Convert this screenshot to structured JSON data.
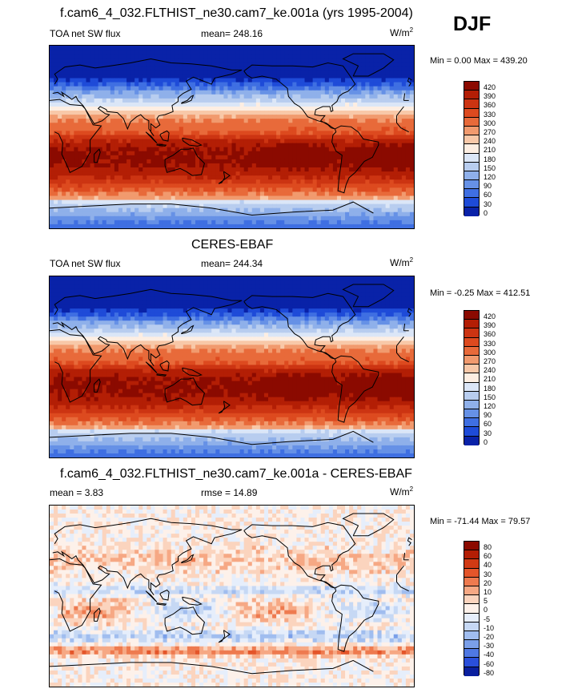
{
  "season": "DJF",
  "panels": [
    {
      "title": "f.cam6_4_032.FLTHIST_ne30.cam7_ke.001a (yrs 1995-2004)",
      "left_label": "TOA net SW flux",
      "mid_label": "mean= 248.16",
      "unit": "W/m",
      "unit_exp": "2",
      "minmax": "Min =   0.00 Max = 439.20"
    },
    {
      "title": "CERES-EBAF",
      "left_label": "TOA net SW flux",
      "mid_label": "mean= 244.34",
      "unit": "W/m",
      "unit_exp": "2",
      "minmax": "Min =  -0.25 Max = 412.51"
    },
    {
      "title": "f.cam6_4_032.FLTHIST_ne30.cam7_ke.001a - CERES-EBAF",
      "left_label": "mean =   3.83",
      "mid_label": "rmse =  14.89",
      "unit": "W/m",
      "unit_exp": "2",
      "minmax": "Min = -71.44 Max =  79.57"
    }
  ],
  "chart_data": [
    {
      "type": "heatmap",
      "title": "f.cam6_4_032.FLTHIST_ne30.cam7_ke.001a (yrs 1995-2004)",
      "variable": "TOA net SW flux",
      "units": "W/m2",
      "mean": 248.16,
      "min": 0.0,
      "max": 439.2,
      "colorbar_levels": [
        "420",
        "390",
        "360",
        "330",
        "300",
        "270",
        "240",
        "210",
        "180",
        "150",
        "120",
        "90",
        "60",
        "30",
        "0"
      ],
      "colorbar_colors": [
        "#8b0a00",
        "#b31e05",
        "#cc3412",
        "#dd4a1f",
        "#e86a3a",
        "#f19a6e",
        "#f8c8a8",
        "#fdeee2",
        "#dbe6f7",
        "#b8cdef",
        "#8fb0ea",
        "#6691e6",
        "#3f6fe2",
        "#1e4bd8",
        "#0922a8"
      ],
      "grid": "lat-lon global map with coastlines"
    },
    {
      "type": "heatmap",
      "title": "CERES-EBAF",
      "variable": "TOA net SW flux",
      "units": "W/m2",
      "mean": 244.34,
      "min": -0.25,
      "max": 412.51,
      "colorbar_levels": [
        "420",
        "390",
        "360",
        "330",
        "300",
        "270",
        "240",
        "210",
        "180",
        "150",
        "120",
        "90",
        "60",
        "30",
        "0"
      ],
      "colorbar_colors": [
        "#8b0a00",
        "#b31e05",
        "#cc3412",
        "#dd4a1f",
        "#e86a3a",
        "#f19a6e",
        "#f8c8a8",
        "#fdeee2",
        "#dbe6f7",
        "#b8cdef",
        "#8fb0ea",
        "#6691e6",
        "#3f6fe2",
        "#1e4bd8",
        "#0922a8"
      ],
      "grid": "lat-lon global map with coastlines"
    },
    {
      "type": "heatmap",
      "title": "f.cam6_4_032.FLTHIST_ne30.cam7_ke.001a - CERES-EBAF",
      "variable": "difference",
      "units": "W/m2",
      "mean": 3.83,
      "rmse": 14.89,
      "min": -71.44,
      "max": 79.57,
      "colorbar_levels": [
        "80",
        "60",
        "40",
        "30",
        "20",
        "10",
        "5",
        "0",
        "-5",
        "-10",
        "-20",
        "-30",
        "-40",
        "-60",
        "-80"
      ],
      "colorbar_colors": [
        "#8b0a00",
        "#b31e05",
        "#d13a14",
        "#e4552a",
        "#ee7a4f",
        "#f6a884",
        "#fbd4be",
        "#fdf1ea",
        "#e6eefb",
        "#c6d8f4",
        "#a0bdef",
        "#7a9fe9",
        "#4f78e3",
        "#2a4fdb",
        "#0a1f9e"
      ],
      "grid": "lat-lon global map with coastlines"
    }
  ]
}
